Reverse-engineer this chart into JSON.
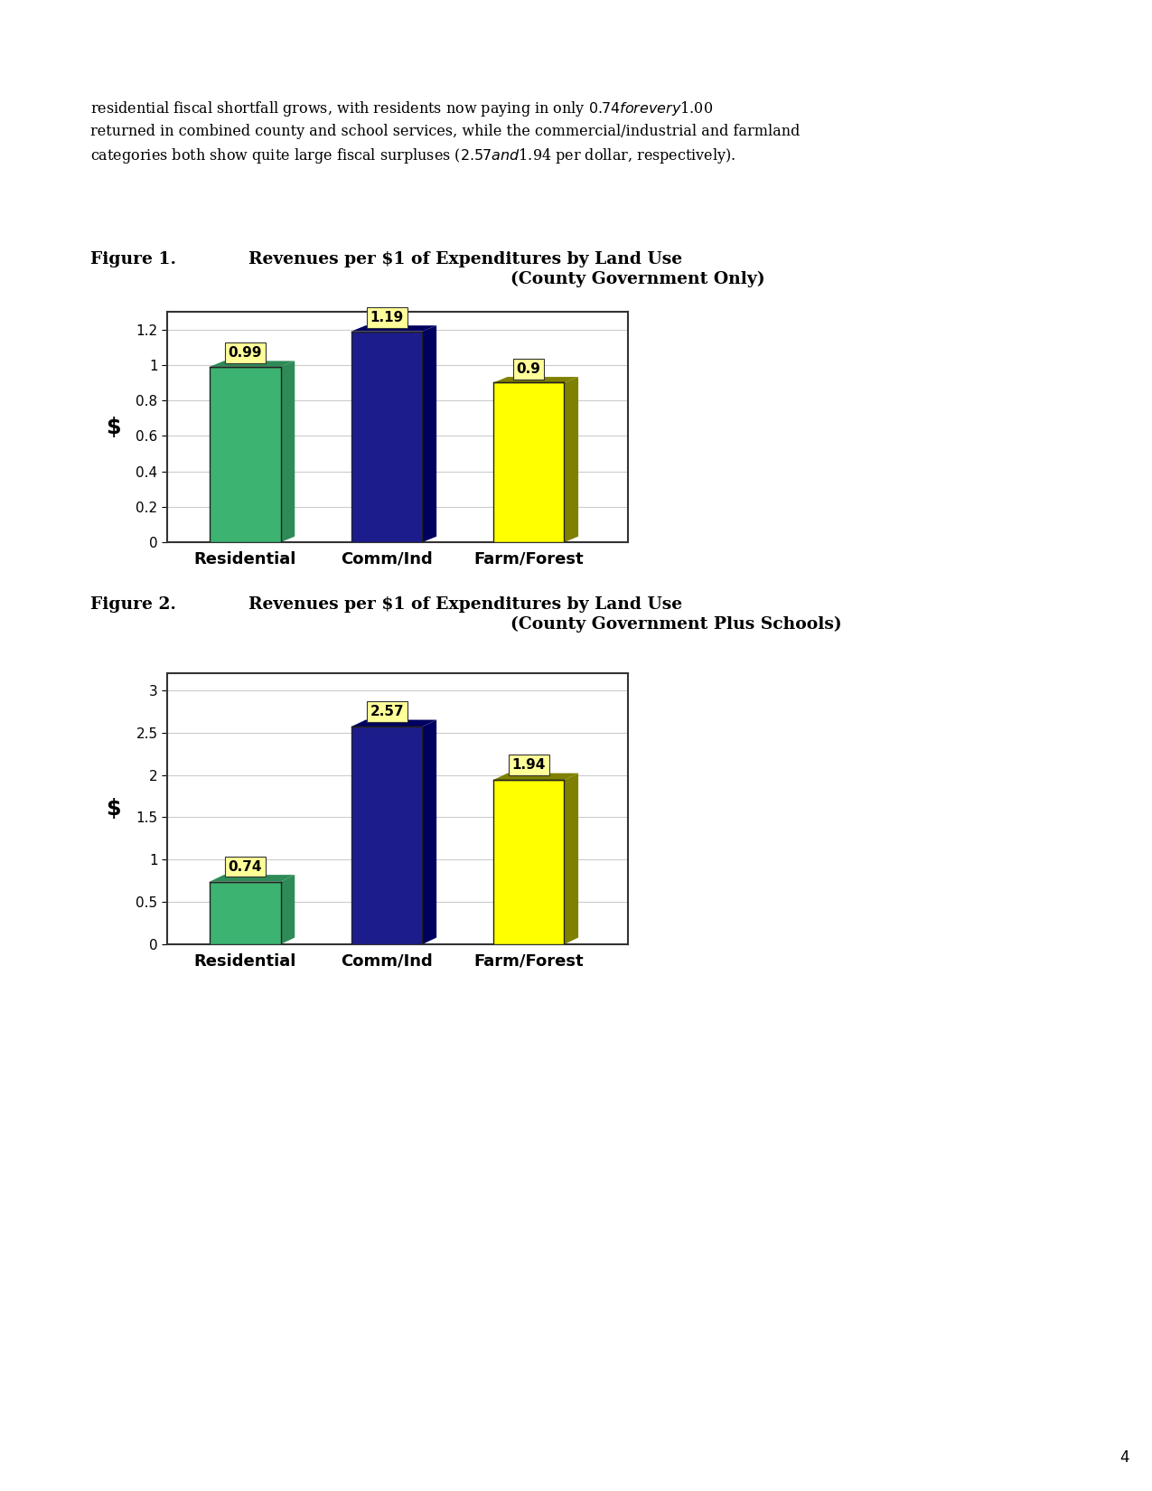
{
  "paragraph_line1": "residential fiscal shortfall grows, with residents now paying in only $0.74 for every $1.00",
  "paragraph_line2": "returned in combined county and school services, while the commercial/industrial and farmland",
  "paragraph_line3": "categories both show quite large fiscal surpluses ($2.57 and $1.94 per dollar, respectively).",
  "fig1_label": "Figure 1.",
  "fig1_title_line1": "Revenues per $1 of Expenditures by Land Use",
  "fig1_title_line2": "(County Government Only)",
  "fig2_label": "Figure 2.",
  "fig2_title_line1": "Revenues per $1 of Expenditures by Land Use",
  "fig2_title_line2": "(County Government Plus Schools)",
  "categories": [
    "Residential",
    "Comm/Ind",
    "Farm/Forest"
  ],
  "fig1_values": [
    0.99,
    1.19,
    0.9
  ],
  "fig2_values": [
    0.74,
    2.57,
    1.94
  ],
  "bar_face_colors": [
    "#3CB371",
    "#1C1C8C",
    "#FFFF00"
  ],
  "bar_side_colors": [
    "#2E8B57",
    "#000060",
    "#808000"
  ],
  "bar_top_colors": [
    "#2E8B57",
    "#000060",
    "#808000"
  ],
  "fig1_ylim": [
    0,
    1.3
  ],
  "fig1_yticks": [
    0,
    0.2,
    0.4,
    0.6,
    0.8,
    1.0,
    1.2
  ],
  "fig2_ylim": [
    0,
    3.2
  ],
  "fig2_yticks": [
    0,
    0.5,
    1.0,
    1.5,
    2.0,
    2.5,
    3.0
  ],
  "ylabel": "$",
  "label_bg_color": "#FFFF99",
  "label_box_edge_color": "#333333",
  "page_number": "4",
  "background_color": "#FFFFFF",
  "grid_color": "#CCCCCC",
  "base_color": "#C8C8C8"
}
